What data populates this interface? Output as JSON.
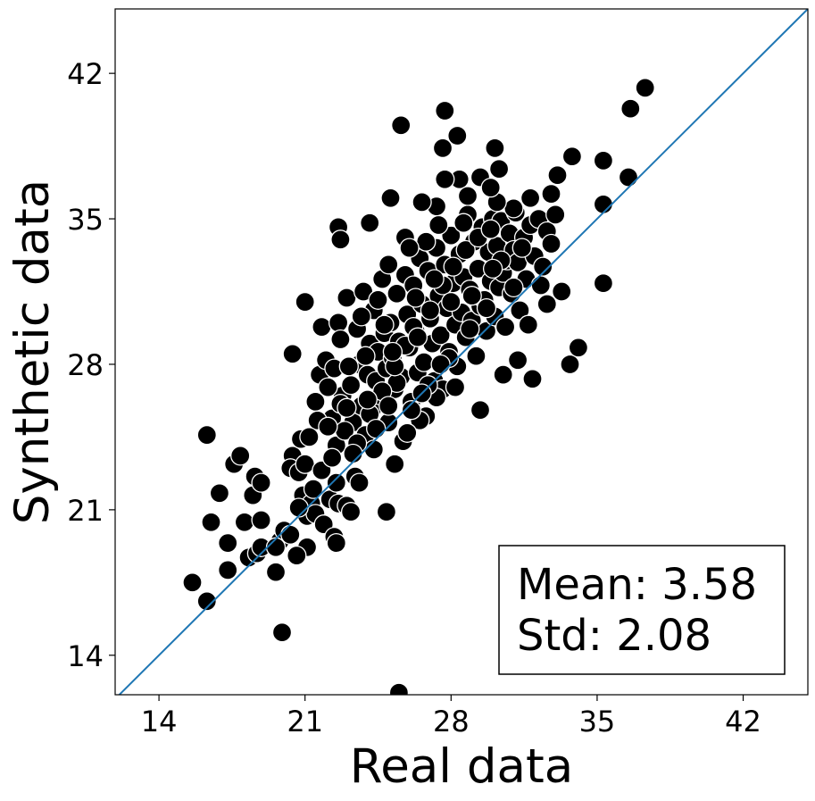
{
  "chart_data": {
    "type": "scatter",
    "title": "",
    "xlabel": "Real data",
    "ylabel": "Synthetic data",
    "xlim": [
      11.9,
      45.1
    ],
    "ylim": [
      12.1,
      45.1
    ],
    "xticks": [
      "14",
      "21",
      "28",
      "35",
      "42"
    ],
    "yticks": [
      "14",
      "21",
      "28",
      "35",
      "42"
    ],
    "tick_values": [
      14,
      21,
      28,
      35,
      42
    ],
    "grid": false,
    "reference_line": {
      "type": "identity",
      "color": "#1f77b4"
    },
    "marker": {
      "fill": "#000000",
      "edge": "#ffffff"
    },
    "annotation": {
      "lines": [
        "Mean: 3.58",
        "Std: 2.08"
      ],
      "placement": "bottom-right"
    },
    "points": [
      [
        16.3,
        24.6
      ],
      [
        16.5,
        20.4
      ],
      [
        16.9,
        21.8
      ],
      [
        17.3,
        19.4
      ],
      [
        17.3,
        18.1
      ],
      [
        17.6,
        23.2
      ],
      [
        17.9,
        23.6
      ],
      [
        18.1,
        20.4
      ],
      [
        18.5,
        21.7
      ],
      [
        18.6,
        22.6
      ],
      [
        18.9,
        22.3
      ],
      [
        18.3,
        18.7
      ],
      [
        18.7,
        18.9
      ],
      [
        18.9,
        19.2
      ],
      [
        18.9,
        20.5
      ],
      [
        19.6,
        18.0
      ],
      [
        19.8,
        19.5
      ],
      [
        20.0,
        20.0
      ],
      [
        20.3,
        19.8
      ],
      [
        20.4,
        23.6
      ],
      [
        20.3,
        23.0
      ],
      [
        20.7,
        22.8
      ],
      [
        20.8,
        24.4
      ],
      [
        20.9,
        21.7
      ],
      [
        21.3,
        21.3
      ],
      [
        21.1,
        20.7
      ],
      [
        21.5,
        20.8
      ],
      [
        21.9,
        20.3
      ],
      [
        22.2,
        21.5
      ],
      [
        22.6,
        21.3
      ],
      [
        23.0,
        21.2
      ],
      [
        23.2,
        20.9
      ],
      [
        22.4,
        19.7
      ],
      [
        22.5,
        19.4
      ],
      [
        21.1,
        19.2
      ],
      [
        20.6,
        18.8
      ],
      [
        19.9,
        15.1
      ],
      [
        15.6,
        17.5
      ],
      [
        16.3,
        16.6
      ],
      [
        20.4,
        28.5
      ],
      [
        21.0,
        31.0
      ],
      [
        21.5,
        26.2
      ],
      [
        21.7,
        27.5
      ],
      [
        21.8,
        29.8
      ],
      [
        22.0,
        28.2
      ],
      [
        22.3,
        25.4
      ],
      [
        22.4,
        27.8
      ],
      [
        22.6,
        30.0
      ],
      [
        22.5,
        24.1
      ],
      [
        22.7,
        29.2
      ],
      [
        22.8,
        26.5
      ],
      [
        23.0,
        31.2
      ],
      [
        23.2,
        27.0
      ],
      [
        23.3,
        25.2
      ],
      [
        23.5,
        29.7
      ],
      [
        23.6,
        28.0
      ],
      [
        23.7,
        26.0
      ],
      [
        23.8,
        31.5
      ],
      [
        23.9,
        24.6
      ],
      [
        24.0,
        27.5
      ],
      [
        24.1,
        29.0
      ],
      [
        24.2,
        25.8
      ],
      [
        24.3,
        30.6
      ],
      [
        24.4,
        27.2
      ],
      [
        24.5,
        28.6
      ],
      [
        24.6,
        26.5
      ],
      [
        24.7,
        32.1
      ],
      [
        24.8,
        29.5
      ],
      [
        24.9,
        27.8
      ],
      [
        25.0,
        25.2
      ],
      [
        25.1,
        30.0
      ],
      [
        25.2,
        28.3
      ],
      [
        25.3,
        26.8
      ],
      [
        25.4,
        31.4
      ],
      [
        25.5,
        29.1
      ],
      [
        25.6,
        27.4
      ],
      [
        25.7,
        24.3
      ],
      [
        25.8,
        32.3
      ],
      [
        25.9,
        30.4
      ],
      [
        26.0,
        28.8
      ],
      [
        26.1,
        26.2
      ],
      [
        26.2,
        31.8
      ],
      [
        26.3,
        29.6
      ],
      [
        26.4,
        27.6
      ],
      [
        26.5,
        33.1
      ],
      [
        26.6,
        30.9
      ],
      [
        26.7,
        28.1
      ],
      [
        26.8,
        25.5
      ],
      [
        26.9,
        32.5
      ],
      [
        27.0,
        30.2
      ],
      [
        27.1,
        29.0
      ],
      [
        27.2,
        27.2
      ],
      [
        27.3,
        33.6
      ],
      [
        27.4,
        31.3
      ],
      [
        27.5,
        29.4
      ],
      [
        27.6,
        26.8
      ],
      [
        27.7,
        32.8
      ],
      [
        27.8,
        30.7
      ],
      [
        27.9,
        28.6
      ],
      [
        28.0,
        34.2
      ],
      [
        28.1,
        31.9
      ],
      [
        28.2,
        29.9
      ],
      [
        28.3,
        27.9
      ],
      [
        28.4,
        33.3
      ],
      [
        28.5,
        30.5
      ],
      [
        28.6,
        32.2
      ],
      [
        28.7,
        29.3
      ],
      [
        28.8,
        35.2
      ],
      [
        28.9,
        31.6
      ],
      [
        29.0,
        30.1
      ],
      [
        29.1,
        33.9
      ],
      [
        29.2,
        28.4
      ],
      [
        29.3,
        32.6
      ],
      [
        29.4,
        30.8
      ],
      [
        29.5,
        34.6
      ],
      [
        29.6,
        31.1
      ],
      [
        29.7,
        29.6
      ],
      [
        29.8,
        33.4
      ],
      [
        29.9,
        32.0
      ],
      [
        30.0,
        35.0
      ],
      [
        30.1,
        30.3
      ],
      [
        30.2,
        33.7
      ],
      [
        30.3,
        31.7
      ],
      [
        30.4,
        34.9
      ],
      [
        30.5,
        32.4
      ],
      [
        30.6,
        29.8
      ],
      [
        30.7,
        33.0
      ],
      [
        30.8,
        34.3
      ],
      [
        30.9,
        31.4
      ],
      [
        31.0,
        33.5
      ],
      [
        31.1,
        35.3
      ],
      [
        31.2,
        32.9
      ],
      [
        31.3,
        30.6
      ],
      [
        31.5,
        34.1
      ],
      [
        31.6,
        32.1
      ],
      [
        31.8,
        34.7
      ],
      [
        32.0,
        33.2
      ],
      [
        32.2,
        35.0
      ],
      [
        32.4,
        32.7
      ],
      [
        32.6,
        34.4
      ],
      [
        32.8,
        33.8
      ],
      [
        33.0,
        35.2
      ],
      [
        31.7,
        29.9
      ],
      [
        32.6,
        30.9
      ],
      [
        33.3,
        31.5
      ],
      [
        33.7,
        28.0
      ],
      [
        34.1,
        28.8
      ],
      [
        35.3,
        31.9
      ],
      [
        31.9,
        27.3
      ],
      [
        31.2,
        28.2
      ],
      [
        30.5,
        27.5
      ],
      [
        29.4,
        25.8
      ],
      [
        28.2,
        26.9
      ],
      [
        27.3,
        26.4
      ],
      [
        26.5,
        25.3
      ],
      [
        25.9,
        24.7
      ],
      [
        25.3,
        23.2
      ],
      [
        24.3,
        23.9
      ],
      [
        23.4,
        22.6
      ],
      [
        23.6,
        22.3
      ],
      [
        24.9,
        20.9
      ],
      [
        25.5,
        12.2
      ],
      [
        25.6,
        39.5
      ],
      [
        27.7,
        40.2
      ],
      [
        28.3,
        39.0
      ],
      [
        27.6,
        38.4
      ],
      [
        30.1,
        38.4
      ],
      [
        30.3,
        37.4
      ],
      [
        29.4,
        37.0
      ],
      [
        28.4,
        36.9
      ],
      [
        27.7,
        36.9
      ],
      [
        28.8,
        36.1
      ],
      [
        27.3,
        35.6
      ],
      [
        26.6,
        35.8
      ],
      [
        25.1,
        36.0
      ],
      [
        25.8,
        34.1
      ],
      [
        24.1,
        34.8
      ],
      [
        22.6,
        34.6
      ],
      [
        22.7,
        34.0
      ],
      [
        33.8,
        38.0
      ],
      [
        35.3,
        37.8
      ],
      [
        35.3,
        35.7
      ],
      [
        36.5,
        37.0
      ],
      [
        36.6,
        40.3
      ],
      [
        37.3,
        41.3
      ],
      [
        33.1,
        37.1
      ],
      [
        32.8,
        36.2
      ],
      [
        31.8,
        36.0
      ],
      [
        31.0,
        35.5
      ],
      [
        30.2,
        35.8
      ],
      [
        26.2,
        29.8
      ],
      [
        25.4,
        27.1
      ],
      [
        24.8,
        29.9
      ],
      [
        23.9,
        28.4
      ],
      [
        23.1,
        27.9
      ],
      [
        22.7,
        26.1
      ],
      [
        22.1,
        26.9
      ],
      [
        21.6,
        25.3
      ],
      [
        21.2,
        24.5
      ],
      [
        21.0,
        23.2
      ],
      [
        21.8,
        22.9
      ],
      [
        22.3,
        23.5
      ],
      [
        22.9,
        24.8
      ],
      [
        23.5,
        24.2
      ],
      [
        24.1,
        25.6
      ],
      [
        24.7,
        26.7
      ],
      [
        25.3,
        27.9
      ],
      [
        25.8,
        28.9
      ],
      [
        26.4,
        29.3
      ],
      [
        27.0,
        30.6
      ],
      [
        27.6,
        31.8
      ],
      [
        28.1,
        32.7
      ],
      [
        28.7,
        33.5
      ],
      [
        29.3,
        34.1
      ],
      [
        29.9,
        34.5
      ],
      [
        30.4,
        33.0
      ],
      [
        31.0,
        31.7
      ],
      [
        26.8,
        33.9
      ],
      [
        27.4,
        34.7
      ],
      [
        28.6,
        34.8
      ],
      [
        29.9,
        36.5
      ],
      [
        24.5,
        31.1
      ],
      [
        23.7,
        30.3
      ],
      [
        25.0,
        32.8
      ],
      [
        26.0,
        33.6
      ],
      [
        27.9,
        28.3
      ],
      [
        26.9,
        27.0
      ],
      [
        26.1,
        25.8
      ],
      [
        25.0,
        26.0
      ],
      [
        22.5,
        22.3
      ],
      [
        21.4,
        22.0
      ],
      [
        20.7,
        21.1
      ],
      [
        19.6,
        19.2
      ],
      [
        22.1,
        25.0
      ],
      [
        23.0,
        25.9
      ],
      [
        24.0,
        26.3
      ],
      [
        25.2,
        28.6
      ],
      [
        26.3,
        31.2
      ],
      [
        27.2,
        32.1
      ],
      [
        28.0,
        31.0
      ],
      [
        29.0,
        31.3
      ],
      [
        30.0,
        32.6
      ],
      [
        31.4,
        33.6
      ],
      [
        32.3,
        31.8
      ],
      [
        29.7,
        30.7
      ],
      [
        28.9,
        29.7
      ],
      [
        27.5,
        28.0
      ],
      [
        26.6,
        26.6
      ],
      [
        24.4,
        24.9
      ],
      [
        23.3,
        23.7
      ]
    ]
  }
}
